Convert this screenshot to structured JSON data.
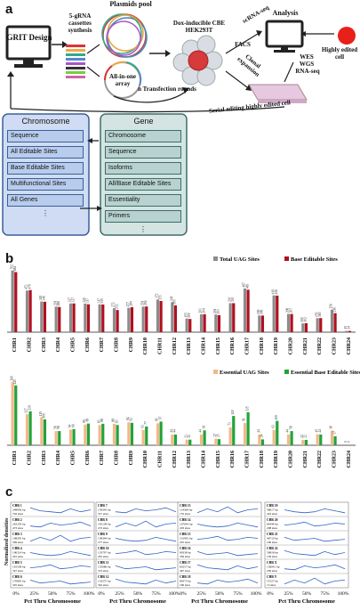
{
  "panels": {
    "a": "a",
    "b": "b",
    "c": "c"
  },
  "schematic": {
    "grit": "GRIT Design",
    "plasmids_pool": "Plasmids pool",
    "sgrna": "5-gRNA cassettes synthesis",
    "all_in_one": "All-in-one array",
    "cbe": "Dox-inducible CBE HEK293T",
    "facs": "FACS",
    "scrna": "scRNA-seq",
    "analysis": "Analysis",
    "highly_edited": "Highly edited cell",
    "wes": "WES",
    "wgs": "WGS",
    "rnaseq": "RNA-seq",
    "clonal": "Clonal expansion",
    "transfection": "n Transfection rounds",
    "serial": "Serial editing highly edited cell",
    "chromosome_box": {
      "title": "Chromosome",
      "items": [
        "Sequence",
        "All Editable Sites",
        "Base Editable Sites",
        "Multifunctional Sites",
        "All Genes"
      ],
      "more": "⋮"
    },
    "gene_box": {
      "title": "Gene",
      "items": [
        "Chromosome",
        "Sequence",
        "Isoforms",
        "All/Base Editable Sites",
        "Essentiality",
        "Primers"
      ],
      "more": "⋮"
    }
  },
  "chart_data": [
    {
      "type": "bar",
      "legend": [
        "Total UAG Sites",
        "Base Editable Sites"
      ],
      "colors": [
        "#8c8c8c",
        "#b01020"
      ],
      "categories": [
        "CHR1",
        "CHR2",
        "CHR3",
        "CHR4",
        "CHR5",
        "CHR6",
        "CHR7",
        "CHR8",
        "CHR9",
        "CHR10",
        "CHR11",
        "CHR12",
        "CHR13",
        "CHR14",
        "CHR15",
        "CHR16",
        "CHR17",
        "CHR18",
        "CHR19",
        "CHR20",
        "CHR21",
        "CHR22",
        "CHR23",
        "CHR24"
      ],
      "series": [
        {
          "name": "Total UAG Sites",
          "values": [
            702,
            473,
            349,
            291,
            327,
            325,
            317,
            272,
            277,
            291,
            372,
            342,
            155,
            203,
            201,
            330,
            497,
            190,
            419,
            208,
            100,
            159,
            256,
            15
          ]
        },
        {
          "name": "Base Editable Sites",
          "values": [
            684,
            479,
            346,
            286,
            327,
            317,
            315,
            252,
            284,
            292,
            355,
            305,
            150,
            204,
            193,
            330,
            483,
            189,
            416,
            207,
            102,
            160,
            216,
            14
          ]
        }
      ],
      "label_texts": [
        [
          "702",
          "684"
        ],
        [
          "473",
          "479"
        ],
        [
          "349",
          "346"
        ],
        [
          "291",
          "286"
        ],
        [
          "327",
          "327"
        ],
        [
          "325",
          "317"
        ],
        [
          "317",
          "315"
        ],
        [
          "272",
          "252"
        ],
        [
          "277",
          "284"
        ],
        [
          "291",
          "292"
        ],
        [
          "372",
          "355"
        ],
        [
          "342",
          "305"
        ],
        [
          "155",
          "150"
        ],
        [
          "203",
          "204"
        ],
        [
          "201",
          "193"
        ],
        [
          "330",
          "330"
        ],
        [
          "497",
          "483"
        ],
        [
          "190",
          "189"
        ],
        [
          "419",
          "416"
        ],
        [
          "208",
          "207"
        ],
        [
          "100",
          "102"
        ],
        [
          "159",
          "160"
        ],
        [
          "256",
          "216"
        ],
        [
          "15",
          "14"
        ]
      ],
      "ylim": [
        0,
        750
      ]
    },
    {
      "type": "bar",
      "legend": [
        "Essential UAG Sites",
        "Essential Base Editable Sites"
      ],
      "colors": [
        "#f2b98a",
        "#22a33a"
      ],
      "categories": [
        "CHR1",
        "CHR2",
        "CHR3",
        "CHR4",
        "CHR5",
        "CHR6",
        "CHR7",
        "CHR8",
        "CHR9",
        "CHR10",
        "CHR11",
        "CHR12",
        "CHR13",
        "CHR14",
        "CHR15",
        "CHR16",
        "CHR17",
        "CHR18",
        "CHR19",
        "CHR20",
        "CHR21",
        "CHR22",
        "CHR23",
        "CHR24"
      ],
      "series": [
        {
          "name": "Essential UAG Sites",
          "values": [
            260,
            127,
            115,
            58,
            64,
            85,
            83,
            88,
            94,
            63,
            90,
            44,
            23,
            44,
            27,
            73,
            91,
            44,
            63,
            44,
            22,
            45,
            60,
            0
          ]
        },
        {
          "name": "Essential Base Editable Sites",
          "values": [
            245,
            139,
            106,
            58,
            66,
            89,
            88,
            83,
            92,
            77,
            97,
            44,
            23,
            61,
            25,
            120,
            135,
            24,
            100,
            58,
            22,
            44,
            37,
            0
          ]
        }
      ],
      "label_texts": [
        [
          "260",
          "245"
        ],
        [
          "127",
          "139"
        ],
        [
          "115",
          "106"
        ],
        [
          "58",
          "58"
        ],
        [
          "64",
          "66"
        ],
        [
          "85",
          "89"
        ],
        [
          "83",
          "88"
        ],
        [
          "88",
          "83"
        ],
        [
          "94",
          "92"
        ],
        [
          "63",
          "77"
        ],
        [
          "90",
          "97"
        ],
        [
          "44",
          "44"
        ],
        [
          "23",
          "23"
        ],
        [
          "44",
          "61"
        ],
        [
          "27",
          "25"
        ],
        [
          "73",
          "120"
        ],
        [
          "91",
          "135"
        ],
        [
          "44",
          "24"
        ],
        [
          "63",
          "100"
        ],
        [
          "44",
          "58"
        ],
        [
          "22",
          "22"
        ],
        [
          "45",
          "44"
        ],
        [
          "60",
          "37"
        ],
        [
          "0",
          "0"
        ]
      ],
      "ylim": [
        0,
        270
      ]
    }
  ],
  "density": {
    "ylabel": "Normalized densities",
    "xlabel": "Pct Thru Chromosome",
    "ticks": [
      "0%",
      "25%",
      "50%",
      "75%",
      "100%"
    ],
    "columns": [
      {
        "id": "col1",
        "rows": [
          {
            "name": "CHR 1",
            "size": "248956 bp",
            "sites": "702 sites"
          },
          {
            "name": "CHR 2",
            "size": "242193 bp",
            "sites": "473 sites"
          },
          {
            "name": "CHR 3",
            "size": "198295 bp",
            "sites": "349 sites"
          },
          {
            "name": "CHR 4",
            "size": "190214 bp",
            "sites": "291 sites"
          },
          {
            "name": "CHR 5",
            "size": "181538 bp",
            "sites": "327 sites"
          },
          {
            "name": "CHR 6",
            "size": "170805 bp",
            "sites": "325 sites"
          }
        ]
      },
      {
        "id": "col2",
        "rows": [
          {
            "name": "CHR 7",
            "size": "159345 bp",
            "sites": "317 sites"
          },
          {
            "name": "CHR 8",
            "size": "145138 bp",
            "sites": "272 sites"
          },
          {
            "name": "CHR 9",
            "size": "138394 bp",
            "sites": "277 sites"
          },
          {
            "name": "CHR 10",
            "size": "133797 bp",
            "sites": "291 sites"
          },
          {
            "name": "CHR 11",
            "size": "135086 bp",
            "sites": "372 sites"
          },
          {
            "name": "CHR 12",
            "size": "133275 bp",
            "sites": "342 sites"
          }
        ]
      },
      {
        "id": "col3",
        "rows": [
          {
            "name": "CHR 13",
            "size": "114364 bp",
            "sites": "155 sites"
          },
          {
            "name": "CHR 14",
            "size": "107043 bp",
            "sites": "203 sites"
          },
          {
            "name": "CHR 15",
            "size": "101991 bp",
            "sites": "201 sites"
          },
          {
            "name": "CHR 16",
            "size": "90338 bp",
            "sites": "330 sites"
          },
          {
            "name": "CHR 17",
            "size": "83257 bp",
            "sites": "497 sites"
          },
          {
            "name": "CHR 18",
            "size": "80373 bp",
            "sites": "190 sites"
          }
        ]
      },
      {
        "id": "col4",
        "rows": [
          {
            "name": "CHR 19",
            "size": "58617 bp",
            "sites": "419 sites"
          },
          {
            "name": "CHR 20",
            "size": "64444 bp",
            "sites": "208 sites"
          },
          {
            "name": "CHR 21",
            "size": "46710 bp",
            "sites": "100 sites"
          },
          {
            "name": "CHR 22",
            "size": "50818 bp",
            "sites": "159 sites"
          },
          {
            "name": "CHR X",
            "size": "156041 bp",
            "sites": "256 sites"
          },
          {
            "name": "CHR Y",
            "size": "57227 bp",
            "sites": "15 sites"
          }
        ]
      }
    ]
  }
}
